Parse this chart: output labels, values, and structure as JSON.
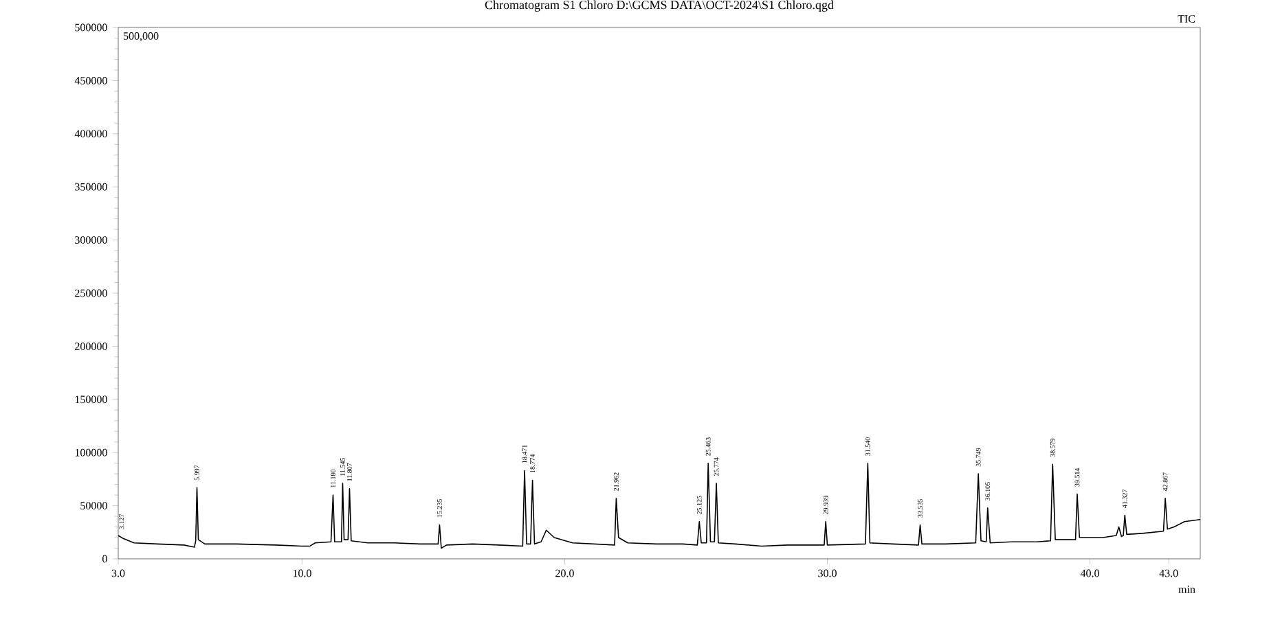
{
  "chart_data": {
    "type": "line",
    "title": "Chromatogram S1 Chloro D:\\GCMS DATA\\OCT-2024\\S1 Chloro.qgd",
    "xlabel": "min",
    "xlim": [
      3.0,
      44.2
    ],
    "ylim": [
      0,
      500000
    ],
    "xticks": [
      {
        "value": 3.0,
        "label": "3.0"
      },
      {
        "value": 10.0,
        "label": "10.0"
      },
      {
        "value": 20.0,
        "label": "20.0"
      },
      {
        "value": 30.0,
        "label": "30.0"
      },
      {
        "value": 40.0,
        "label": "40.0"
      },
      {
        "value": 43.0,
        "label": "43.0"
      }
    ],
    "yticks": [
      0,
      50000,
      100000,
      150000,
      200000,
      250000,
      300000,
      350000,
      400000,
      450000,
      500000
    ],
    "series": [
      {
        "name": "TIC",
        "color": "#000000",
        "x": [
          3.0,
          3.2,
          3.6,
          4.5,
          5.5,
          5.9,
          5.95,
          5.997,
          6.05,
          6.3,
          7.5,
          9.0,
          10.0,
          10.3,
          10.5,
          11.1,
          11.18,
          11.24,
          11.5,
          11.545,
          11.6,
          11.75,
          11.807,
          11.87,
          12.5,
          13.5,
          14.5,
          15.18,
          15.235,
          15.3,
          15.5,
          16.5,
          17.5,
          18.4,
          18.471,
          18.55,
          18.7,
          18.774,
          18.85,
          19.1,
          19.3,
          19.6,
          20.3,
          21.9,
          21.962,
          22.05,
          22.4,
          23.5,
          24.5,
          25.05,
          25.125,
          25.2,
          25.4,
          25.463,
          25.55,
          25.7,
          25.774,
          25.85,
          26.5,
          27.5,
          28.5,
          29.88,
          29.939,
          30.0,
          31.45,
          31.54,
          31.62,
          32.5,
          33.47,
          33.535,
          33.6,
          34.5,
          35.65,
          35.749,
          35.85,
          36.05,
          36.105,
          36.2,
          37.0,
          38.0,
          38.5,
          38.579,
          38.68,
          39.45,
          39.514,
          39.6,
          40.5,
          41.0,
          41.1,
          41.2,
          41.27,
          41.327,
          41.4,
          42.0,
          42.8,
          42.867,
          42.95,
          43.2,
          43.6,
          44.2
        ],
        "values": [
          22000,
          19000,
          15000,
          14000,
          13000,
          11000,
          17000,
          67000,
          18000,
          14000,
          14000,
          13000,
          12000,
          12000,
          15000,
          16000,
          60000,
          16000,
          16000,
          71000,
          18000,
          18000,
          66000,
          17000,
          15000,
          15000,
          14000,
          14000,
          32000,
          10000,
          13000,
          14000,
          13000,
          12000,
          83000,
          14000,
          14000,
          74000,
          14000,
          16000,
          27000,
          20000,
          15000,
          13000,
          57000,
          20000,
          15000,
          14000,
          14000,
          13000,
          35000,
          15000,
          15000,
          90000,
          16000,
          16000,
          71000,
          15000,
          14000,
          12000,
          13000,
          13000,
          35000,
          13000,
          14000,
          90000,
          15000,
          14000,
          13000,
          32000,
          14000,
          14000,
          15000,
          80000,
          17000,
          16000,
          48000,
          15000,
          16000,
          16000,
          17000,
          89000,
          18000,
          18000,
          61000,
          20000,
          20000,
          22000,
          30000,
          21000,
          22000,
          41000,
          23000,
          24000,
          26000,
          57000,
          28000,
          30000,
          35000,
          37000
        ]
      }
    ],
    "annotations": [
      "500,000",
      {
        "text": "3.127",
        "x": 3.127,
        "y": 21000
      },
      {
        "text": "5.997",
        "x": 5.997,
        "y": 67000
      },
      {
        "text": "11.180",
        "x": 11.18,
        "y": 60000
      },
      {
        "text": "11.545",
        "x": 11.545,
        "y": 71000
      },
      {
        "text": "11.807",
        "x": 11.807,
        "y": 66000
      },
      {
        "text": "15.235",
        "x": 15.235,
        "y": 32000
      },
      {
        "text": "18.471",
        "x": 18.471,
        "y": 83000
      },
      {
        "text": "18.774",
        "x": 18.774,
        "y": 74000
      },
      {
        "text": "21.962",
        "x": 21.962,
        "y": 57000
      },
      {
        "text": "25.125",
        "x": 25.125,
        "y": 35000
      },
      {
        "text": "25.463",
        "x": 25.463,
        "y": 90000
      },
      {
        "text": "25.774",
        "x": 25.774,
        "y": 71000
      },
      {
        "text": "29.939",
        "x": 29.939,
        "y": 35000
      },
      {
        "text": "31.540",
        "x": 31.54,
        "y": 90000
      },
      {
        "text": "33.535",
        "x": 33.535,
        "y": 32000
      },
      {
        "text": "35.749",
        "x": 35.749,
        "y": 80000
      },
      {
        "text": "36.105",
        "x": 36.105,
        "y": 48000
      },
      {
        "text": "38.579",
        "x": 38.579,
        "y": 89000
      },
      {
        "text": "39.514",
        "x": 39.514,
        "y": 61000
      },
      {
        "text": "41.327",
        "x": 41.327,
        "y": 41000
      },
      {
        "text": "42.867",
        "x": 42.867,
        "y": 57000
      }
    ]
  }
}
